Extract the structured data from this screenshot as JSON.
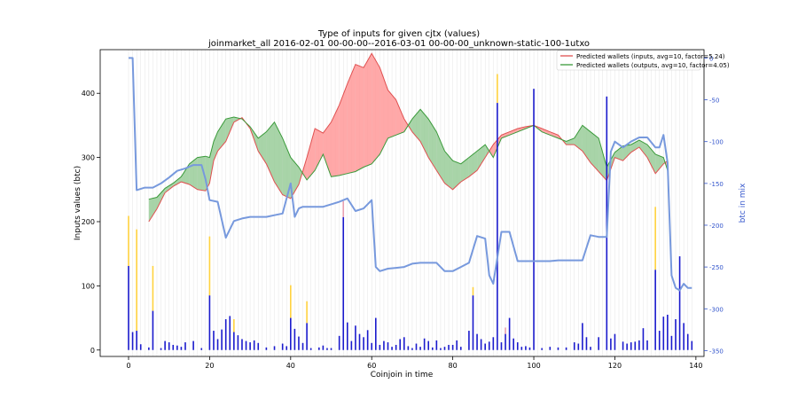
{
  "chart_data": {
    "type": "area",
    "title": "Type of inputs for given cjtx (values)",
    "subtitle": "joinmarket_all 2016-02-01 00-00-00--2016-03-01 00-00-00_unknown-static-100-1utxo",
    "xlabel": "Coinjoin in time",
    "ylabel_left": "Inputs values (btc)",
    "ylabel_right": "btc in mix",
    "xlim": [
      -7,
      142
    ],
    "ylim_left": [
      -10,
      468
    ],
    "ylim_right": [
      -357,
      10
    ],
    "xticks": [
      0,
      20,
      40,
      60,
      80,
      100,
      120,
      140
    ],
    "yticks_left": [
      0,
      100,
      200,
      300,
      400
    ],
    "yticks_right": [
      0,
      -50,
      -100,
      -150,
      -200,
      -250,
      -300,
      -350
    ],
    "legend": {
      "position": "top-right",
      "entries": [
        {
          "label": "Predicted wallets (inputs, avg=10, factor=5.24)",
          "color": "#e05050"
        },
        {
          "label": "Predicted wallets (outputs, avg=10, factor=4.05)",
          "color": "#3a9a3a"
        }
      ]
    },
    "colors": {
      "inputs": "#e05050",
      "outputs": "#3a9a3a",
      "inputs_fill": "#ff9999",
      "outputs_fill": "#99cc99",
      "mix": "#7799dd",
      "bars": "#1a1acc",
      "bars_top": "#ffd23f",
      "bars_pink": "#e8a0b0",
      "grid": "#dddddd"
    },
    "series": [
      {
        "name": "Predicted wallets (inputs, avg=10, factor=5.24)",
        "x": [
          5,
          7,
          9,
          11,
          13,
          15,
          17,
          19,
          20,
          21,
          22,
          24,
          26,
          28,
          30,
          32,
          34,
          36,
          38,
          40,
          42,
          44,
          46,
          48,
          50,
          52,
          54,
          56,
          58,
          60,
          62,
          64,
          66,
          68,
          70,
          72,
          74,
          76,
          78,
          80,
          82,
          84,
          86,
          88,
          90,
          92,
          94,
          96,
          98,
          100,
          102,
          104,
          106,
          108,
          110,
          112,
          114,
          116,
          118,
          120,
          122,
          124,
          126,
          128,
          130,
          132,
          133
        ],
        "values": [
          200,
          220,
          245,
          255,
          262,
          258,
          250,
          248,
          260,
          295,
          310,
          325,
          355,
          362,
          345,
          310,
          290,
          262,
          242,
          236,
          258,
          300,
          345,
          338,
          355,
          382,
          415,
          445,
          440,
          462,
          440,
          405,
          390,
          360,
          340,
          325,
          300,
          280,
          260,
          250,
          262,
          270,
          280,
          300,
          320,
          335,
          340,
          345,
          348,
          350,
          345,
          340,
          335,
          320,
          320,
          310,
          292,
          278,
          264,
          300,
          295,
          308,
          316,
          300,
          275,
          290,
          295
        ]
      },
      {
        "name": "Predicted wallets (outputs, avg=10, factor=4.05)",
        "x": [
          5,
          7,
          9,
          11,
          13,
          15,
          17,
          19,
          20,
          21,
          22,
          24,
          26,
          28,
          30,
          32,
          34,
          36,
          38,
          40,
          42,
          44,
          46,
          48,
          50,
          52,
          54,
          56,
          58,
          60,
          62,
          64,
          66,
          68,
          70,
          72,
          74,
          76,
          78,
          80,
          82,
          84,
          86,
          88,
          90,
          92,
          94,
          96,
          98,
          100,
          102,
          104,
          106,
          108,
          110,
          112,
          114,
          116,
          118,
          120,
          122,
          124,
          126,
          128,
          130,
          132,
          133
        ],
        "values": [
          235,
          238,
          252,
          260,
          270,
          290,
          300,
          302,
          300,
          325,
          340,
          360,
          363,
          360,
          348,
          330,
          340,
          355,
          330,
          300,
          285,
          265,
          280,
          305,
          270,
          272,
          275,
          278,
          285,
          290,
          305,
          330,
          335,
          340,
          360,
          375,
          360,
          340,
          310,
          295,
          290,
          300,
          310,
          320,
          300,
          330,
          335,
          340,
          345,
          350,
          340,
          335,
          330,
          325,
          330,
          350,
          340,
          330,
          285,
          308,
          318,
          320,
          327,
          320,
          305,
          300,
          280
        ]
      },
      {
        "name": "btc in mix",
        "x": [
          0,
          1,
          2,
          4,
          6,
          8,
          10,
          12,
          14,
          16,
          18,
          19,
          20,
          22,
          24,
          26,
          28,
          30,
          32,
          34,
          36,
          38,
          40,
          41,
          42,
          43,
          44,
          46,
          48,
          50,
          52,
          54,
          56,
          58,
          60,
          61,
          62,
          64,
          66,
          68,
          70,
          72,
          74,
          76,
          78,
          80,
          82,
          84,
          86,
          88,
          89,
          90,
          92,
          94,
          96,
          98,
          100,
          102,
          104,
          106,
          108,
          110,
          112,
          114,
          116,
          118,
          119,
          120,
          122,
          124,
          126,
          128,
          130,
          131,
          132,
          133,
          134,
          135,
          136,
          137,
          138,
          139
        ],
        "values": [
          0,
          0,
          -158,
          -155,
          -155,
          -150,
          -143,
          -135,
          -132,
          -128,
          -128,
          -145,
          -170,
          -172,
          -215,
          -195,
          -192,
          -190,
          -190,
          -190,
          -188,
          -186,
          -150,
          -190,
          -180,
          -178,
          -178,
          -178,
          -178,
          -175,
          -172,
          -168,
          -183,
          -180,
          -170,
          -250,
          -255,
          -252,
          -251,
          -250,
          -246,
          -245,
          -245,
          -245,
          -255,
          -255,
          -250,
          -245,
          -213,
          -216,
          -260,
          -270,
          -208,
          -208,
          -243,
          -243,
          -243,
          -243,
          -243,
          -242,
          -242,
          -242,
          -242,
          -212,
          -214,
          -214,
          -112,
          -100,
          -107,
          -100,
          -95,
          -95,
          -107,
          -107,
          -92,
          -125,
          -260,
          -275,
          -278,
          -270,
          -275,
          -275
        ]
      }
    ],
    "bars": {
      "x": [
        0,
        1,
        2,
        3,
        5,
        6,
        8,
        9,
        10,
        11,
        12,
        13,
        14,
        16,
        18,
        20,
        21,
        22,
        23,
        24,
        25,
        26,
        27,
        28,
        29,
        30,
        31,
        32,
        34,
        36,
        38,
        39,
        40,
        41,
        42,
        43,
        44,
        45,
        47,
        48,
        49,
        50,
        52,
        53,
        54,
        55,
        56,
        57,
        58,
        59,
        60,
        61,
        62,
        63,
        64,
        65,
        66,
        67,
        68,
        69,
        70,
        71,
        72,
        73,
        74,
        75,
        76,
        77,
        78,
        79,
        80,
        81,
        82,
        84,
        85,
        86,
        87,
        88,
        89,
        90,
        91,
        92,
        93,
        94,
        95,
        96,
        97,
        98,
        99,
        100,
        102,
        104,
        106,
        108,
        110,
        111,
        112,
        113,
        114,
        116,
        118,
        119,
        120,
        122,
        123,
        124,
        125,
        126,
        127,
        128,
        130,
        131,
        132,
        133,
        134,
        135,
        136,
        137,
        138,
        139
      ],
      "values": [
        131,
        28,
        30,
        9,
        4,
        61,
        3,
        14,
        12,
        8,
        7,
        5,
        12,
        14,
        3,
        85,
        30,
        17,
        32,
        48,
        53,
        28,
        23,
        17,
        14,
        12,
        15,
        11,
        4,
        6,
        10,
        6,
        50,
        33,
        21,
        11,
        42,
        3,
        4,
        7,
        3,
        3,
        22,
        207,
        43,
        14,
        38,
        25,
        20,
        31,
        11,
        50,
        8,
        14,
        12,
        5,
        8,
        17,
        20,
        6,
        3,
        10,
        5,
        18,
        14,
        4,
        15,
        3,
        5,
        8,
        8,
        15,
        5,
        30,
        85,
        25,
        17,
        10,
        13,
        20,
        385,
        12,
        25,
        50,
        18,
        12,
        5,
        6,
        4,
        407,
        3,
        5,
        4,
        4,
        12,
        10,
        42,
        20,
        5,
        20,
        395,
        18,
        25,
        13,
        10,
        12,
        13,
        15,
        34,
        15,
        125,
        30,
        52,
        55,
        22,
        48,
        146,
        42,
        25,
        14
      ],
      "tops": [
        78,
        0,
        158,
        0,
        0,
        70,
        0,
        0,
        0,
        0,
        0,
        0,
        0,
        0,
        0,
        92,
        0,
        0,
        0,
        0,
        0,
        20,
        0,
        0,
        0,
        0,
        0,
        0,
        0,
        0,
        0,
        0,
        51,
        0,
        0,
        0,
        34,
        0,
        0,
        0,
        0,
        0,
        0,
        25,
        0,
        0,
        0,
        0,
        0,
        0,
        0,
        0,
        0,
        0,
        0,
        0,
        0,
        0,
        0,
        0,
        0,
        0,
        0,
        0,
        0,
        0,
        0,
        0,
        0,
        0,
        0,
        0,
        0,
        0,
        13,
        0,
        0,
        0,
        0,
        0,
        45,
        0,
        10,
        0,
        0,
        0,
        0,
        0,
        0,
        0,
        0,
        0,
        0,
        0,
        0,
        0,
        0,
        0,
        0,
        0,
        0,
        0,
        0,
        0,
        0,
        0,
        0,
        0,
        0,
        0,
        98,
        0,
        0,
        0,
        0,
        0,
        0,
        0,
        0,
        0
      ]
    }
  }
}
